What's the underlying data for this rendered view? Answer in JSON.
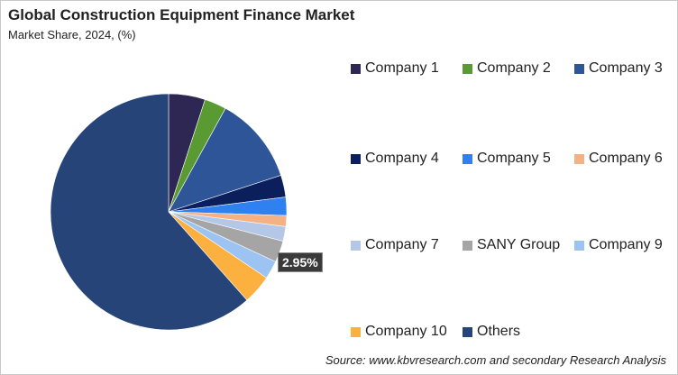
{
  "chart_data": {
    "type": "pie",
    "title": "Global Construction  Equipment Finance Market",
    "subtitle": "Market Share, 2024, (%)",
    "slices": [
      {
        "label": "Company 1",
        "value": 5.0,
        "color": "#2e2653"
      },
      {
        "label": "Company 2",
        "value": 3.0,
        "color": "#5a9a32"
      },
      {
        "label": "Company 3",
        "value": 12.0,
        "color": "#2e5597"
      },
      {
        "label": "Company 4",
        "value": 3.0,
        "color": "#0a1f5c"
      },
      {
        "label": "Company 5",
        "value": 2.5,
        "color": "#2f80f0"
      },
      {
        "label": "Company 6",
        "value": 1.5,
        "color": "#f4b183"
      },
      {
        "label": "Company 7",
        "value": 2.0,
        "color": "#b4c7e7"
      },
      {
        "label": "SANY Group",
        "value": 2.95,
        "color": "#a5a5a5"
      },
      {
        "label": "Company 9",
        "value": 2.5,
        "color": "#9dc3f2"
      },
      {
        "label": "Company 10",
        "value": 4.0,
        "color": "#fbb040"
      },
      {
        "label": "Others",
        "value": 61.55,
        "color": "#264478"
      }
    ],
    "data_label": "2.95%",
    "legend_position": "right"
  },
  "source": "Source: www.kbvresearch.com and secondary Research Analysis"
}
